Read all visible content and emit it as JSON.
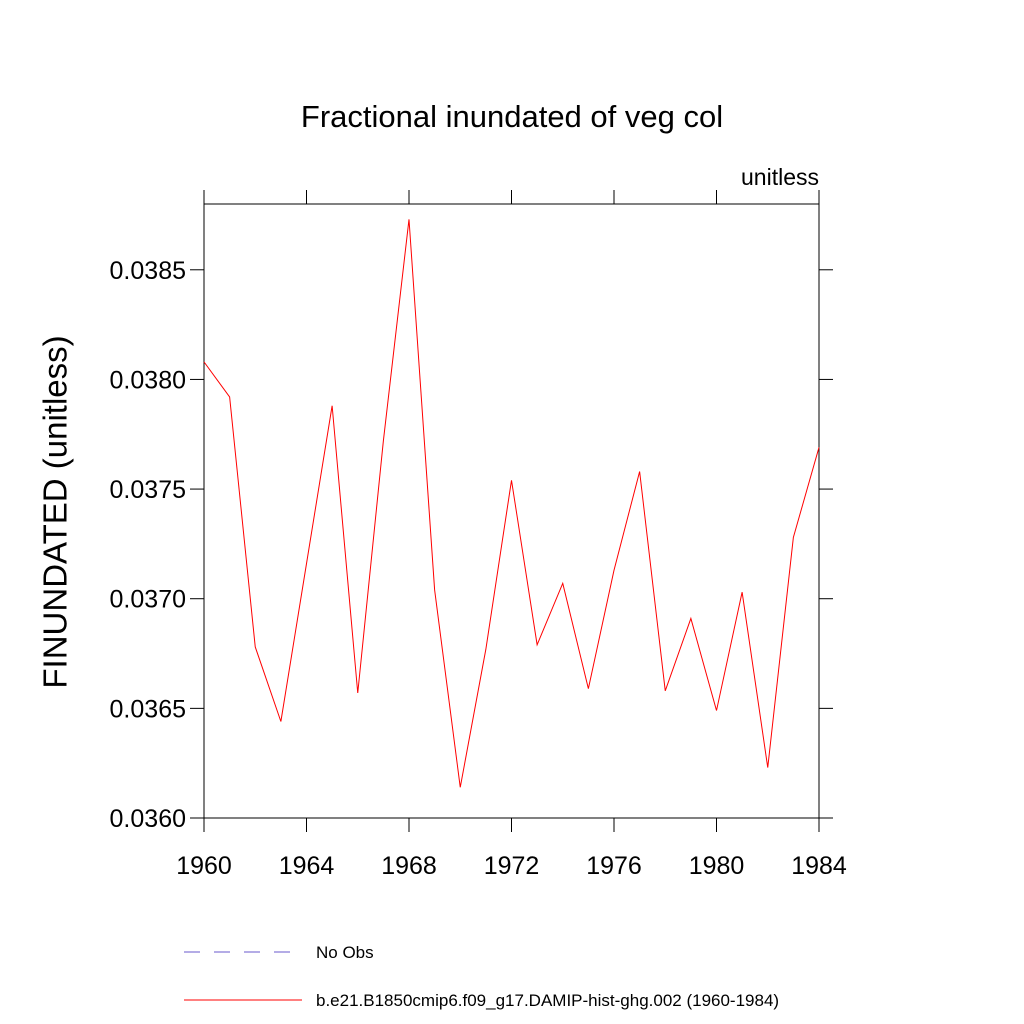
{
  "chart_data": {
    "type": "line",
    "title": "Fractional inundated of veg col",
    "subtitle": "unitless",
    "y_label": "FINUNDATED  (unitless)",
    "x": [
      1960,
      1961,
      1962,
      1963,
      1964,
      1965,
      1966,
      1967,
      1968,
      1969,
      1970,
      1971,
      1972,
      1973,
      1974,
      1975,
      1976,
      1977,
      1978,
      1979,
      1980,
      1981,
      1982,
      1983,
      1984
    ],
    "series": [
      {
        "name": "No Obs",
        "color": "#6a5acd",
        "dashed": true,
        "values": [
          null,
          null,
          null,
          null,
          null,
          null,
          null,
          null,
          null,
          null,
          null,
          null,
          null,
          null,
          null,
          null,
          null,
          null,
          null,
          null,
          null,
          null,
          null,
          null,
          null
        ]
      },
      {
        "name": "b.e21.B1850cmip6.f09_g17.DAMIP-hist-ghg.002 (1960-1984)",
        "color": "#ff0000",
        "dashed": false,
        "values": [
          0.03808,
          0.03792,
          0.03678,
          0.03644,
          0.03716,
          0.03788,
          0.03657,
          0.03772,
          0.03873,
          0.03704,
          0.03614,
          0.03677,
          0.03754,
          0.03679,
          0.03707,
          0.03659,
          0.03713,
          0.03758,
          0.03658,
          0.03691,
          0.03649,
          0.03703,
          0.03623,
          0.03728,
          0.03769
        ]
      }
    ],
    "xlim": [
      1960,
      1984
    ],
    "xticks": [
      1960,
      1964,
      1968,
      1972,
      1976,
      1980,
      1984
    ],
    "ylim": [
      0.036,
      0.0388
    ],
    "yticks": [
      {
        "value": 0.036,
        "label": "0.0360"
      },
      {
        "value": 0.0365,
        "label": "0.0365"
      },
      {
        "value": 0.037,
        "label": "0.0370"
      },
      {
        "value": 0.0375,
        "label": "0.0375"
      },
      {
        "value": 0.038,
        "label": "0.0380"
      },
      {
        "value": 0.0385,
        "label": "0.0385"
      }
    ],
    "grid": false
  }
}
